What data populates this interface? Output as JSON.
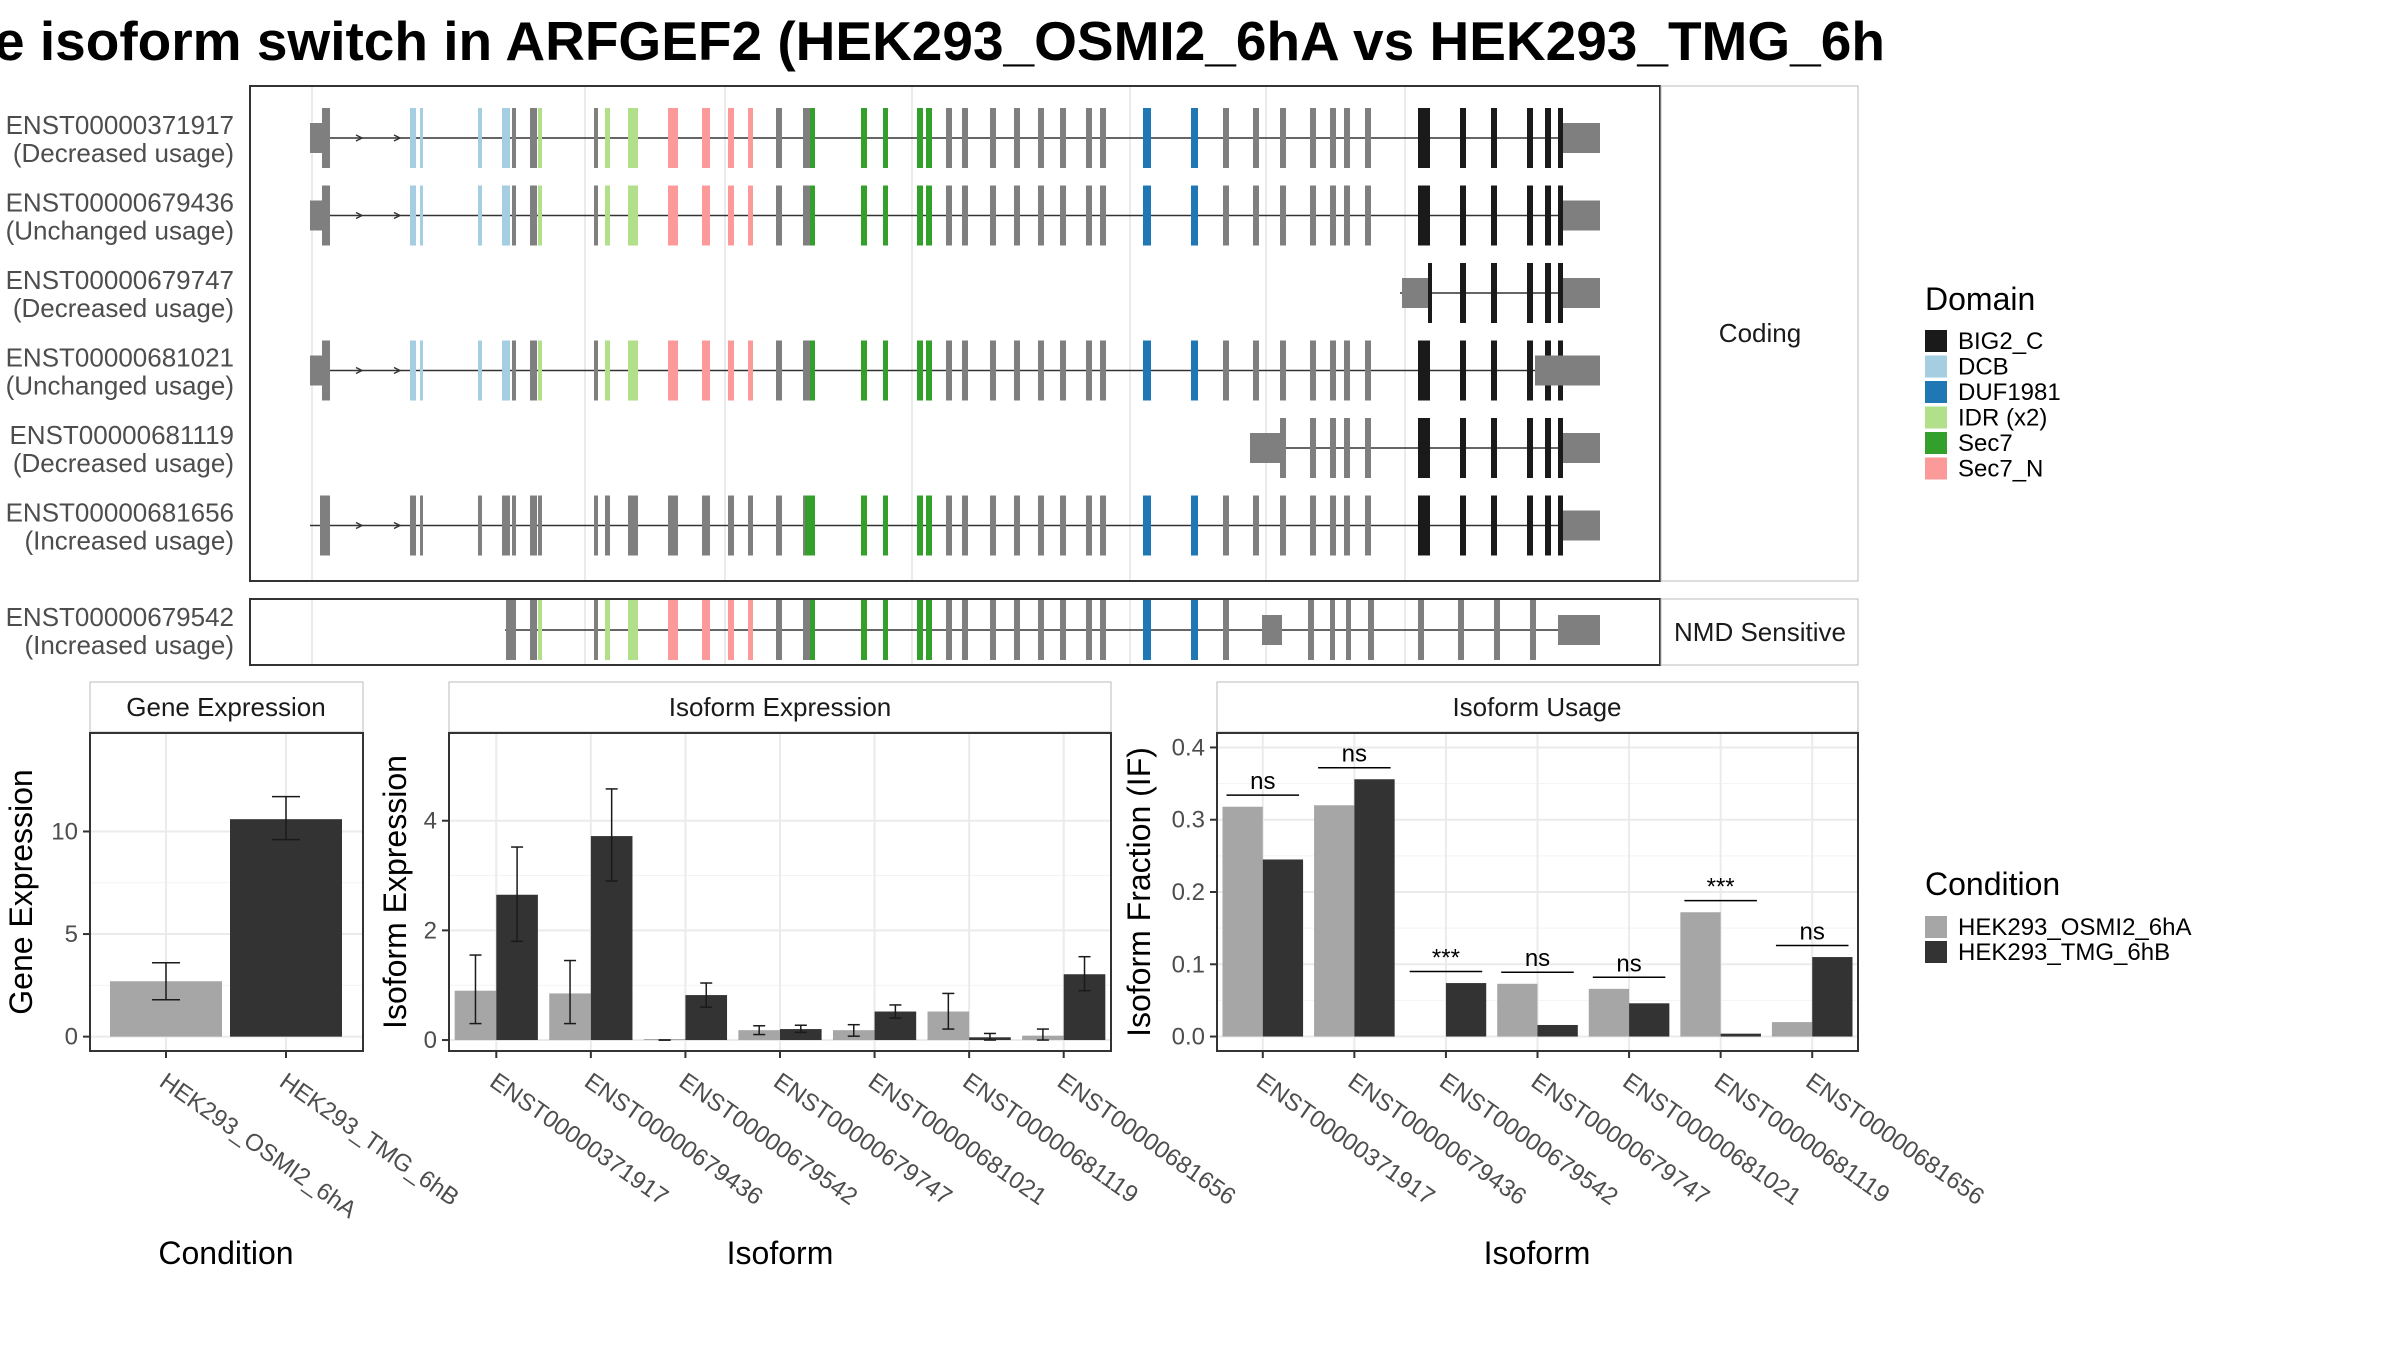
{
  "title": "e isoform switch in ARFGEF2 (HEK293_OSMI2_6hA vs HEK293_TMG_6h",
  "colors": {
    "BIG2_C": "#1a1a1a",
    "DCB": "#a6cee3",
    "DUF1981": "#1f78b4",
    "IDR (x2)": "#b2df8a",
    "Sec7": "#33a02c",
    "Sec7_N": "#fb9a99",
    "exon_default": "#7f7f7f",
    "cond_a": "#a6a6a6",
    "cond_b": "#333333",
    "intron": "#333333"
  },
  "structure": {
    "coding_label": "Coding",
    "nmd_label": "NMD Sensitive",
    "coding_isoforms": [
      {
        "id": "ENST00000371917",
        "usage": "(Decreased usage)",
        "variant": "full"
      },
      {
        "id": "ENST00000679436",
        "usage": "(Unchanged usage)",
        "variant": "full"
      },
      {
        "id": "ENST00000679747",
        "usage": "(Decreased usage)",
        "variant": "short3"
      },
      {
        "id": "ENST00000681021",
        "usage": "(Unchanged usage)",
        "variant": "full_alt"
      },
      {
        "id": "ENST00000681119",
        "usage": "(Decreased usage)",
        "variant": "short_mid"
      },
      {
        "id": "ENST00000681656",
        "usage": "(Increased usage)",
        "variant": "noncoding5"
      }
    ],
    "nmd_isoforms": [
      {
        "id": "ENST00000679542",
        "usage": "(Increased usage)",
        "variant": "nmd"
      }
    ]
  },
  "domain_legend": {
    "title": "Domain",
    "items": [
      "BIG2_C",
      "DCB",
      "DUF1981",
      "IDR (x2)",
      "Sec7",
      "Sec7_N"
    ]
  },
  "condition_legend": {
    "title": "Condition",
    "items": [
      "HEK293_OSMI2_6hA",
      "HEK293_TMG_6hB"
    ]
  },
  "chart_data": [
    {
      "type": "bar",
      "panel": "Gene Expression",
      "xlabel": "Condition",
      "ylabel": "Gene Expression",
      "ylim": [
        -0.7,
        14.8
      ],
      "yticks": [
        0,
        5,
        10
      ],
      "categories": [
        "HEK293_OSMI2_6hA",
        "HEK293_TMG_6hB"
      ],
      "values": [
        2.7,
        10.6
      ],
      "errors": [
        [
          1.8,
          3.6
        ],
        [
          9.6,
          11.7
        ]
      ]
    },
    {
      "type": "bar",
      "panel": "Isoform Expression",
      "xlabel": "Isoform",
      "ylabel": "Isoform Expression",
      "ylim": [
        -0.2,
        5.6
      ],
      "yticks": [
        0,
        2,
        4
      ],
      "categories": [
        "ENST00000371917",
        "ENST00000679436",
        "ENST00000679542",
        "ENST00000679747",
        "ENST00000681021",
        "ENST00000681119",
        "ENST00000681656"
      ],
      "series": [
        {
          "name": "HEK293_OSMI2_6hA",
          "values": [
            0.9,
            0.85,
            0.0,
            0.18,
            0.18,
            0.52,
            0.08
          ],
          "errors": [
            [
              0.3,
              1.55
            ],
            [
              0.3,
              1.45
            ],
            [
              0.0,
              0.0
            ],
            [
              0.1,
              0.26
            ],
            [
              0.07,
              0.28
            ],
            [
              0.2,
              0.85
            ],
            [
              0.0,
              0.2
            ]
          ]
        },
        {
          "name": "HEK293_TMG_6hB",
          "values": [
            2.65,
            3.72,
            0.82,
            0.2,
            0.52,
            0.05,
            1.2
          ],
          "errors": [
            [
              1.8,
              3.52
            ],
            [
              2.9,
              4.58
            ],
            [
              0.6,
              1.04
            ],
            [
              0.14,
              0.27
            ],
            [
              0.4,
              0.64
            ],
            [
              0.0,
              0.12
            ],
            [
              0.9,
              1.52
            ]
          ]
        }
      ]
    },
    {
      "type": "bar",
      "panel": "Isoform Usage",
      "xlabel": "Isoform",
      "ylabel": "Isoform Fraction (IF)",
      "ylim": [
        -0.02,
        0.42
      ],
      "yticks": [
        0.0,
        0.1,
        0.2,
        0.3,
        0.4
      ],
      "categories": [
        "ENST00000371917",
        "ENST00000679436",
        "ENST00000679542",
        "ENST00000679747",
        "ENST00000681021",
        "ENST00000681119",
        "ENST00000681656"
      ],
      "series": [
        {
          "name": "HEK293_OSMI2_6hA",
          "values": [
            0.318,
            0.32,
            0.0,
            0.073,
            0.066,
            0.172,
            0.02
          ]
        },
        {
          "name": "HEK293_TMG_6hB",
          "values": [
            0.245,
            0.356,
            0.074,
            0.016,
            0.046,
            0.004,
            0.11
          ]
        }
      ],
      "significance": [
        "ns",
        "ns",
        "***",
        "ns",
        "ns",
        "***",
        "ns"
      ],
      "sig_y": [
        0.334,
        0.372,
        0.09,
        0.089,
        0.082,
        0.188,
        0.126
      ]
    }
  ]
}
